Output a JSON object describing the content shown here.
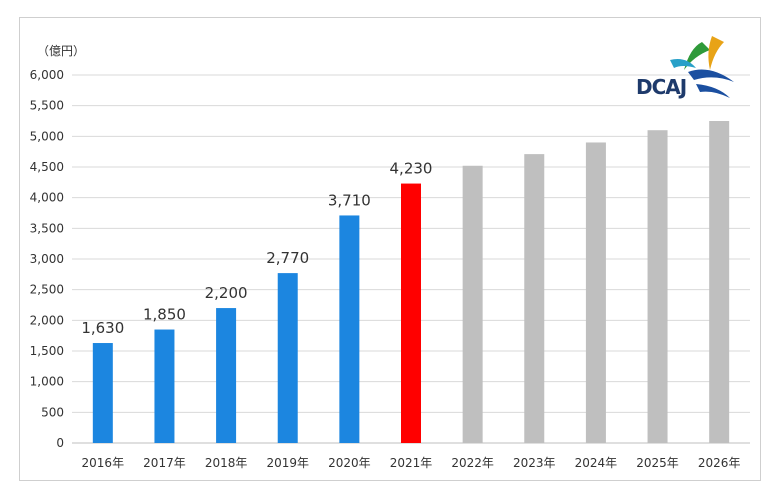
{
  "unit_label": "（億円）",
  "logo": {
    "text": "DCAJ",
    "name": "DCAJ"
  },
  "colors": {
    "actual": "#1C86E0",
    "current": "#FF0000",
    "forecast": "#BFBFBF",
    "grid": "#d9d9d9"
  },
  "chart_data": {
    "type": "bar",
    "categories": [
      "2016年",
      "2017年",
      "2018年",
      "2019年",
      "2020年",
      "2021年",
      "2022年",
      "2023年",
      "2024年",
      "2025年",
      "2026年"
    ],
    "values": [
      1630,
      1850,
      2200,
      2770,
      3710,
      4230,
      4520,
      4710,
      4900,
      5100,
      5250
    ],
    "data_labels": [
      "1,630",
      "1,850",
      "2,200",
      "2,770",
      "3,710",
      "4,230",
      "",
      "",
      "",
      "",
      ""
    ],
    "bar_kinds": [
      "actual",
      "actual",
      "actual",
      "actual",
      "actual",
      "current",
      "forecast",
      "forecast",
      "forecast",
      "forecast",
      "forecast"
    ],
    "ylim": [
      0,
      6000
    ],
    "yticks": [
      0,
      500,
      1000,
      1500,
      2000,
      2500,
      3000,
      3500,
      4000,
      4500,
      5000,
      5500,
      6000
    ],
    "ytick_labels": [
      "0",
      "500",
      "1,000",
      "1,500",
      "2,000",
      "2,500",
      "3,000",
      "3,500",
      "4,000",
      "4,500",
      "5,000",
      "5,500",
      "6,000"
    ],
    "grid": true,
    "title": "",
    "xlabel": "",
    "ylabel": "（億円）"
  }
}
